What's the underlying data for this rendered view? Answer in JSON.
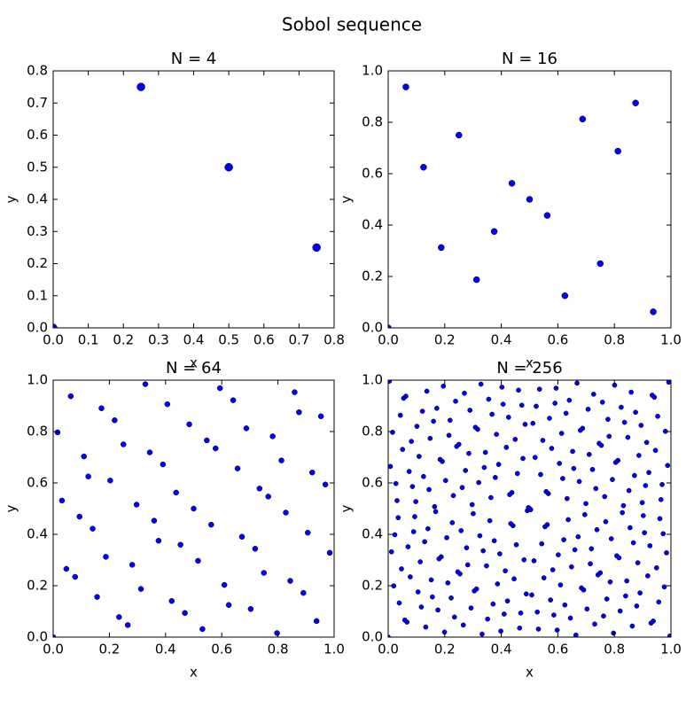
{
  "title": "Sobol sequence",
  "chart_data": [
    {
      "type": "scatter",
      "title": "N = 4",
      "x_label": "x",
      "y_label": "y",
      "color": "#0000ff",
      "xlim": [
        0,
        0.8
      ],
      "ylim": [
        0,
        0.8
      ],
      "xticks": [
        {
          "value": 0,
          "label": "0.0"
        },
        0.1,
        0.2,
        0.3,
        0.4,
        0.5,
        0.6,
        0.7,
        0.8
      ],
      "yticks": [
        {
          "value": 0,
          "label": "0.0"
        },
        0.1,
        0.2,
        0.3,
        0.4,
        0.5,
        0.6,
        0.7,
        0.8
      ],
      "x": [
        0,
        0.5,
        0.25,
        0.75
      ],
      "y": [
        0,
        0.5,
        0.75,
        0.25
      ]
    },
    {
      "type": "scatter",
      "title": "N = 16",
      "x_label": "x",
      "y_label": "y",
      "color": "#0000ff",
      "xlim": [
        0,
        1
      ],
      "ylim": [
        0,
        1
      ],
      "xticks": [
        {
          "value": 0,
          "label": "0.0"
        },
        0.2,
        0.4,
        0.6,
        0.8,
        {
          "value": 1,
          "label": "1.0"
        }
      ],
      "yticks": [
        {
          "value": 0,
          "label": "0.0"
        },
        0.2,
        0.4,
        0.6,
        0.8,
        {
          "value": 1,
          "label": "1.0"
        }
      ],
      "x": [
        0,
        0.5,
        0.25,
        0.75,
        0.125,
        0.625,
        0.375,
        0.875,
        0.0625,
        0.5625,
        0.3125,
        0.8125,
        0.1875,
        0.6875,
        0.4375,
        0.9375
      ],
      "y": [
        0,
        0.5,
        0.75,
        0.25,
        0.625,
        0.125,
        0.375,
        0.875,
        0.9375,
        0.4375,
        0.1875,
        0.6875,
        0.3125,
        0.8125,
        0.5625,
        0.0625
      ]
    },
    {
      "type": "scatter",
      "title": "N = 64",
      "x_label": "x",
      "y_label": "y",
      "color": "#0000ff",
      "xlim": [
        0,
        1
      ],
      "ylim": [
        0,
        1
      ],
      "xticks": [
        {
          "value": 0,
          "label": "0.0"
        },
        0.2,
        0.4,
        0.6,
        0.8,
        {
          "value": 1,
          "label": "1.0"
        }
      ],
      "yticks": [
        {
          "value": 0,
          "label": "0.0"
        },
        0.2,
        0.4,
        0.6,
        0.8,
        {
          "value": 1,
          "label": "1.0"
        }
      ],
      "x": [
        0,
        0.5,
        0.25,
        0.75,
        0.125,
        0.625,
        0.375,
        0.875,
        0.0625,
        0.5625,
        0.3125,
        0.8125,
        0.1875,
        0.6875,
        0.4375,
        0.9375,
        0.0313,
        0.5313,
        0.2813,
        0.7813,
        0.1563,
        0.6563,
        0.4063,
        0.9063,
        0.0938,
        0.5938,
        0.3438,
        0.8438,
        0.2188,
        0.7188,
        0.4688,
        0.9688,
        0.0156,
        0.5156,
        0.2656,
        0.7656,
        0.1406,
        0.6406,
        0.3906,
        0.8906,
        0.0781,
        0.5781,
        0.3281,
        0.8281,
        0.2031,
        0.7031,
        0.4531,
        0.9531,
        0.0469,
        0.5469,
        0.2969,
        0.7969,
        0.1719,
        0.6719,
        0.4219,
        0.9219,
        0.1094,
        0.6094,
        0.3594,
        0.8594,
        0.2344,
        0.7344,
        0.4844,
        0.9844
      ],
      "y": [
        0,
        0.5,
        0.75,
        0.25,
        0.625,
        0.125,
        0.375,
        0.875,
        0.9375,
        0.4375,
        0.1875,
        0.6875,
        0.3125,
        0.8125,
        0.5625,
        0.0625,
        0.5313,
        0.0313,
        0.2813,
        0.7813,
        0.1563,
        0.6563,
        0.9063,
        0.4063,
        0.4688,
        0.9688,
        0.7188,
        0.2188,
        0.8438,
        0.3438,
        0.0938,
        0.5938,
        0.7969,
        0.2969,
        0.0469,
        0.5469,
        0.4219,
        0.9219,
        0.6719,
        0.1719,
        0.2344,
        0.7344,
        0.9844,
        0.4844,
        0.6094,
        0.1094,
        0.3594,
        0.8594,
        0.2656,
        0.7656,
        0.5156,
        0.0156,
        0.8906,
        0.3906,
        0.1406,
        0.6406,
        0.7031,
        0.2031,
        0.4531,
        0.9531,
        0.0781,
        0.5781,
        0.8281,
        0.3281
      ]
    },
    {
      "type": "scatter",
      "title": "N = 256",
      "x_label": "x",
      "y_label": "y",
      "color": "#0000ff",
      "xlim": [
        0,
        1
      ],
      "ylim": [
        0,
        1
      ],
      "xticks": [
        {
          "value": 0,
          "label": "0.0"
        },
        0.2,
        0.4,
        0.6,
        0.8,
        {
          "value": 1,
          "label": "1.0"
        }
      ],
      "yticks": [
        {
          "value": 0,
          "label": "0.0"
        },
        0.2,
        0.4,
        0.6,
        0.8,
        {
          "value": 1,
          "label": "1.0"
        }
      ],
      "x": [
        0,
        0.5,
        0.25,
        0.75,
        0.125,
        0.625,
        0.375,
        0.875,
        0.0625,
        0.5625,
        0.3125,
        0.8125,
        0.1875,
        0.6875,
        0.4375,
        0.9375,
        0.0313,
        0.5313,
        0.2813,
        0.7813,
        0.1563,
        0.6563,
        0.4063,
        0.9063,
        0.0938,
        0.5938,
        0.3438,
        0.8438,
        0.2188,
        0.7188,
        0.4688,
        0.9688,
        0.0156,
        0.5156,
        0.2656,
        0.7656,
        0.1406,
        0.6406,
        0.3906,
        0.8906,
        0.0781,
        0.5781,
        0.3281,
        0.8281,
        0.2031,
        0.7031,
        0.4531,
        0.9531,
        0.0469,
        0.5469,
        0.2969,
        0.7969,
        0.1719,
        0.6719,
        0.4219,
        0.9219,
        0.1094,
        0.6094,
        0.3594,
        0.8594,
        0.2344,
        0.7344,
        0.4844,
        0.9844,
        0.0078,
        0.5078,
        0.2578,
        0.7578,
        0.1328,
        0.6328,
        0.3828,
        0.8828,
        0.0703,
        0.5703,
        0.3203,
        0.8203,
        0.1953,
        0.6953,
        0.4453,
        0.9453,
        0.0391,
        0.5391,
        0.2891,
        0.7891,
        0.1641,
        0.6641,
        0.4141,
        0.9141,
        0.1016,
        0.6016,
        0.3516,
        0.8516,
        0.2266,
        0.7266,
        0.4766,
        0.9766,
        0.0234,
        0.5234,
        0.2734,
        0.7734,
        0.1484,
        0.6484,
        0.3984,
        0.8984,
        0.0859,
        0.5859,
        0.3359,
        0.8359,
        0.2109,
        0.7109,
        0.4609,
        0.9609,
        0.0547,
        0.5547,
        0.3047,
        0.8047,
        0.1797,
        0.6797,
        0.4297,
        0.9297,
        0.1172,
        0.6172,
        0.3672,
        0.8672,
        0.2422,
        0.7422,
        0.4922,
        0.9922,
        0.0039,
        0.5039,
        0.2539,
        0.7539,
        0.1289,
        0.6289,
        0.3789,
        0.8789,
        0.0664,
        0.5664,
        0.3164,
        0.8164,
        0.1914,
        0.6914,
        0.4414,
        0.9414,
        0.0352,
        0.5352,
        0.2852,
        0.7852,
        0.1602,
        0.6602,
        0.4102,
        0.9102,
        0.0977,
        0.5977,
        0.3477,
        0.8477,
        0.2227,
        0.7227,
        0.4727,
        0.9727,
        0.0195,
        0.5195,
        0.2695,
        0.7695,
        0.1445,
        0.6445,
        0.3945,
        0.8945,
        0.082,
        0.582,
        0.332,
        0.832,
        0.207,
        0.707,
        0.457,
        0.957,
        0.0508,
        0.5508,
        0.3008,
        0.8008,
        0.1758,
        0.6758,
        0.4258,
        0.9258,
        0.1133,
        0.6133,
        0.3633,
        0.8633,
        0.2383,
        0.7383,
        0.4883,
        0.9883,
        0.0117,
        0.5117,
        0.2617,
        0.7617,
        0.1367,
        0.6367,
        0.3867,
        0.8867,
        0.0742,
        0.5742,
        0.3242,
        0.8242,
        0.1992,
        0.6992,
        0.4492,
        0.9492,
        0.043,
        0.543,
        0.293,
        0.793,
        0.168,
        0.668,
        0.418,
        0.918,
        0.1055,
        0.6055,
        0.3555,
        0.8555,
        0.2305,
        0.7305,
        0.4805,
        0.9805,
        0.0273,
        0.5273,
        0.2773,
        0.7773,
        0.1523,
        0.6523,
        0.4023,
        0.9023,
        0.0898,
        0.5898,
        0.3398,
        0.8398,
        0.2148,
        0.7148,
        0.4648,
        0.9648,
        0.0586,
        0.5586,
        0.3086,
        0.8086,
        0.1836,
        0.6836,
        0.4336,
        0.9336,
        0.1211,
        0.6211,
        0.3711,
        0.8711,
        0.2461,
        0.7461,
        0.4961,
        0.9961
      ],
      "y": [
        0,
        0.5,
        0.75,
        0.25,
        0.625,
        0.125,
        0.375,
        0.875,
        0.9375,
        0.4375,
        0.1875,
        0.6875,
        0.3125,
        0.8125,
        0.5625,
        0.0625,
        0.5313,
        0.0313,
        0.2813,
        0.7813,
        0.1563,
        0.6563,
        0.9063,
        0.4063,
        0.4688,
        0.9688,
        0.7188,
        0.2188,
        0.8438,
        0.3438,
        0.0938,
        0.5938,
        0.7969,
        0.2969,
        0.0469,
        0.5469,
        0.4219,
        0.9219,
        0.6719,
        0.1719,
        0.2344,
        0.7344,
        0.9844,
        0.4844,
        0.6094,
        0.1094,
        0.3594,
        0.8594,
        0.2656,
        0.7656,
        0.5156,
        0.0156,
        0.8906,
        0.3906,
        0.1406,
        0.6406,
        0.7031,
        0.2031,
        0.4531,
        0.9531,
        0.0781,
        0.5781,
        0.8281,
        0.3281,
        0.6641,
        0.1641,
        0.4141,
        0.9141,
        0.0391,
        0.5391,
        0.7891,
        0.2891,
        0.3516,
        0.8516,
        0.6016,
        0.1016,
        0.9766,
        0.4766,
        0.2266,
        0.7266,
        0.1328,
        0.6328,
        0.8828,
        0.3828,
        0.5078,
        0.0078,
        0.2578,
        0.7578,
        0.8203,
        0.3203,
        0.0703,
        0.5703,
        0.4453,
        0.9453,
        0.6953,
        0.1953,
        0.3984,
        0.8984,
        0.6484,
        0.1484,
        0.7734,
        0.2734,
        0.0234,
        0.5234,
        0.5859,
        0.0859,
        0.3359,
        0.8359,
        0.2109,
        0.7109,
        0.9609,
        0.4609,
        0.9297,
        0.4297,
        0.1797,
        0.6797,
        0.3047,
        0.8047,
        0.5547,
        0.0547,
        0.1172,
        0.6172,
        0.8672,
        0.3672,
        0.7422,
        0.2422,
        0.4922,
        0.9922,
        0.9961,
        0.4961,
        0.2461,
        0.7461,
        0.3711,
        0.8711,
        0.6211,
        0.1211,
        0.0586,
        0.5586,
        0.8086,
        0.3086,
        0.6836,
        0.1836,
        0.4336,
        0.9336,
        0.4648,
        0.9648,
        0.7148,
        0.2148,
        0.8398,
        0.3398,
        0.0898,
        0.5898,
        0.5273,
        0.0273,
        0.2773,
        0.7773,
        0.1523,
        0.6523,
        0.9023,
        0.4023,
        0.1992,
        0.6992,
        0.9492,
        0.4492,
        0.5742,
        0.0742,
        0.3242,
        0.8242,
        0.7617,
        0.2617,
        0.0117,
        0.5117,
        0.3867,
        0.8867,
        0.6367,
        0.1367,
        0.7305,
        0.2305,
        0.4805,
        0.9805,
        0.1055,
        0.6055,
        0.8555,
        0.3555,
        0.293,
        0.793,
        0.543,
        0.043,
        0.918,
        0.418,
        0.168,
        0.668,
        0.332,
        0.832,
        0.582,
        0.082,
        0.957,
        0.457,
        0.207,
        0.707,
        0.6445,
        0.1445,
        0.3945,
        0.8945,
        0.0195,
        0.5195,
        0.7695,
        0.2695,
        0.8633,
        0.3633,
        0.1133,
        0.6133,
        0.4883,
        0.9883,
        0.7383,
        0.2383,
        0.1758,
        0.6758,
        0.9258,
        0.4258,
        0.5508,
        0.0508,
        0.3008,
        0.8008,
        0.5977,
        0.0977,
        0.3477,
        0.8477,
        0.2227,
        0.7227,
        0.9727,
        0.4727,
        0.4102,
        0.9102,
        0.6602,
        0.1602,
        0.7852,
        0.2852,
        0.0352,
        0.5352,
        0.0664,
        0.5664,
        0.8164,
        0.3164,
        0.6914,
        0.1914,
        0.4414,
        0.9414,
        0.8789,
        0.3789,
        0.1289,
        0.6289,
        0.2539,
        0.7539,
        0.5039,
        0.0039
      ]
    }
  ]
}
